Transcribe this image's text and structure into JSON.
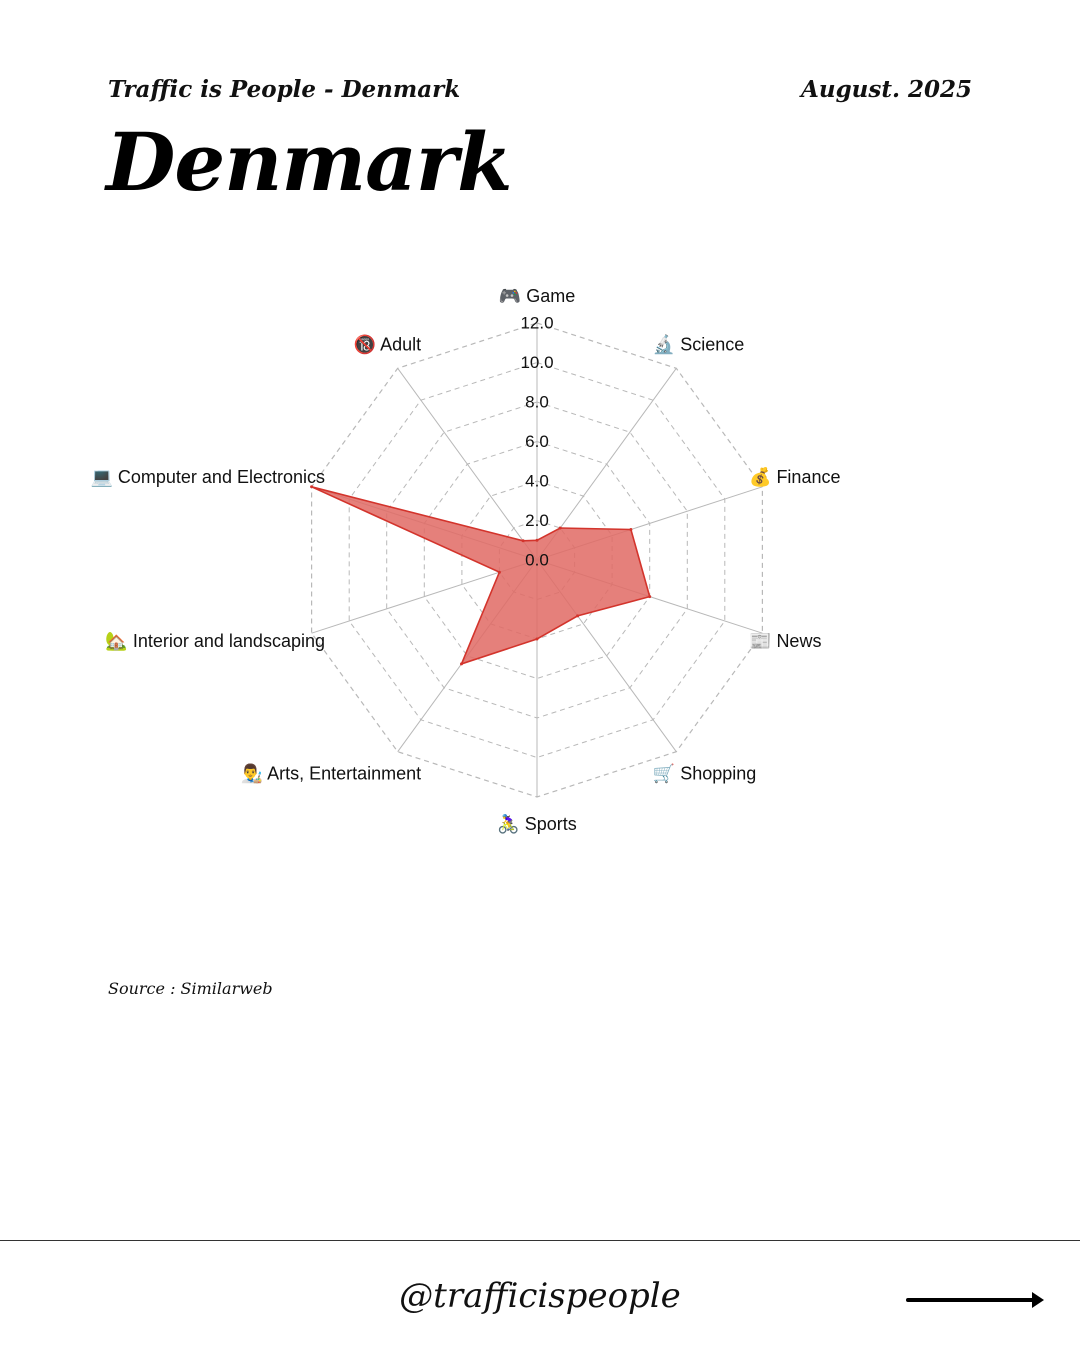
{
  "header": {
    "left": "Traffic is People - Denmark",
    "right": "August. 2025"
  },
  "title": "Denmark",
  "source": "Source : Similarweb",
  "footer": {
    "handle": "@trafficispeople"
  },
  "chart_data": {
    "type": "radar",
    "axes": [
      {
        "icon": "🎮",
        "label": "Game"
      },
      {
        "icon": "🔬",
        "label": "Science"
      },
      {
        "icon": "💰",
        "label": "Finance"
      },
      {
        "icon": "📰",
        "label": "News"
      },
      {
        "icon": "🛒",
        "label": "Shopping"
      },
      {
        "icon": "🚴‍♀️",
        "label": "Sports"
      },
      {
        "icon": "👨‍🎨",
        "label": "Arts, Entertainment"
      },
      {
        "icon": "🏡",
        "label": "Interior and landscaping"
      },
      {
        "icon": "💻",
        "label": "Computer and Electronics"
      },
      {
        "icon": "🔞",
        "label": "Adult"
      }
    ],
    "values": [
      1.0,
      2.0,
      5.0,
      6.0,
      3.5,
      4.0,
      6.5,
      2.0,
      12.0,
      1.2
    ],
    "rlim": [
      0,
      12
    ],
    "rticks": [
      "0.0",
      "2.0",
      "4.0",
      "6.0",
      "8.0",
      "10.0",
      "12.0"
    ],
    "grid": true,
    "colors": {
      "fill": "#e06a64",
      "stroke": "#d3342c",
      "grid": "#b8b8b8"
    }
  }
}
